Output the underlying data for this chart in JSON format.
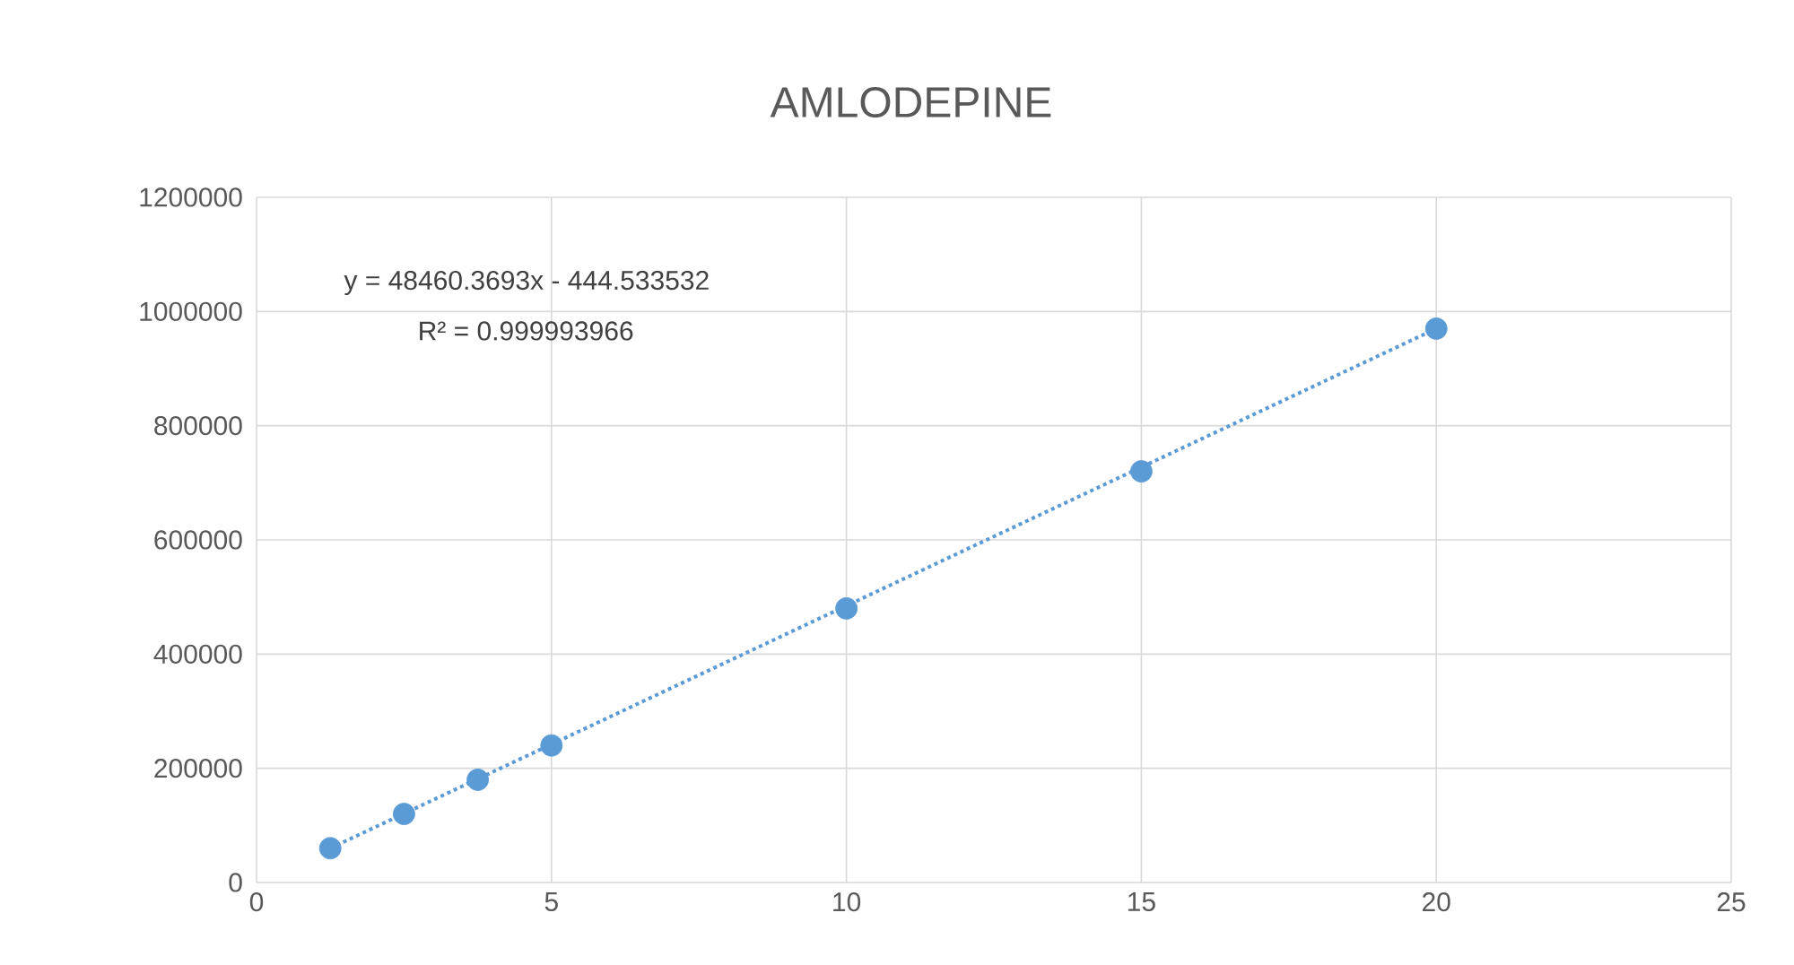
{
  "chart_data": {
    "type": "scatter",
    "title": "AMLODEPINE",
    "annotations": [
      "y = 48460.3693x - 444.533532",
      "R² = 0.999993966"
    ],
    "x": [
      1.25,
      2.5,
      3.75,
      5,
      10,
      15,
      20
    ],
    "series": [
      {
        "color": "#5b9bd5",
        "marker": "circle",
        "values": [
          60000,
          120000,
          180000,
          240000,
          480000,
          720000,
          970000
        ]
      },
      {
        "type": "line",
        "color": "#5b9bd5",
        "line_style": "dotted",
        "x": [
          1.25,
          20
        ],
        "values": [
          60000,
          970000
        ]
      }
    ],
    "xlim": [
      0,
      25
    ],
    "ylim": [
      0,
      1200000
    ],
    "xticks": [
      0,
      5,
      10,
      15,
      20,
      25
    ],
    "yticks": [
      0,
      200000,
      400000,
      600000,
      800000,
      1000000,
      1200000
    ],
    "grid": true
  }
}
